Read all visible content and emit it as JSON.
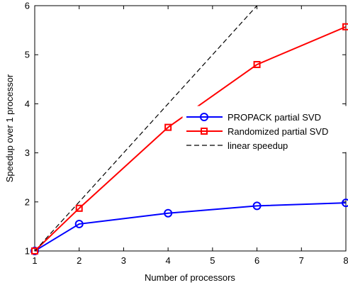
{
  "chart_data": {
    "type": "line",
    "title": "",
    "xlabel": "Number of processors",
    "ylabel": "Speedup over 1 processor",
    "xlim": [
      1,
      8
    ],
    "ylim": [
      1,
      6
    ],
    "xticks": [
      1,
      2,
      3,
      4,
      5,
      6,
      7,
      8
    ],
    "yticks": [
      1,
      2,
      3,
      4,
      5,
      6
    ],
    "grid": false,
    "legend_position": "center-right",
    "series": [
      {
        "name": "PROPACK partial SVD",
        "color": "#0000ff",
        "marker": "circle",
        "line_style": "solid",
        "x": [
          1,
          2,
          4,
          6,
          8
        ],
        "y": [
          1.0,
          1.55,
          1.77,
          1.92,
          1.98
        ]
      },
      {
        "name": "Randomized partial SVD",
        "color": "#ff0000",
        "marker": "square",
        "line_style": "solid",
        "x": [
          1,
          2,
          4,
          6,
          8
        ],
        "y": [
          1.0,
          1.87,
          3.52,
          4.8,
          5.57
        ]
      },
      {
        "name": "linear speedup",
        "color": "#000000",
        "marker": "none",
        "line_style": "dashed",
        "x": [
          1,
          8
        ],
        "y": [
          1,
          8
        ]
      }
    ]
  }
}
